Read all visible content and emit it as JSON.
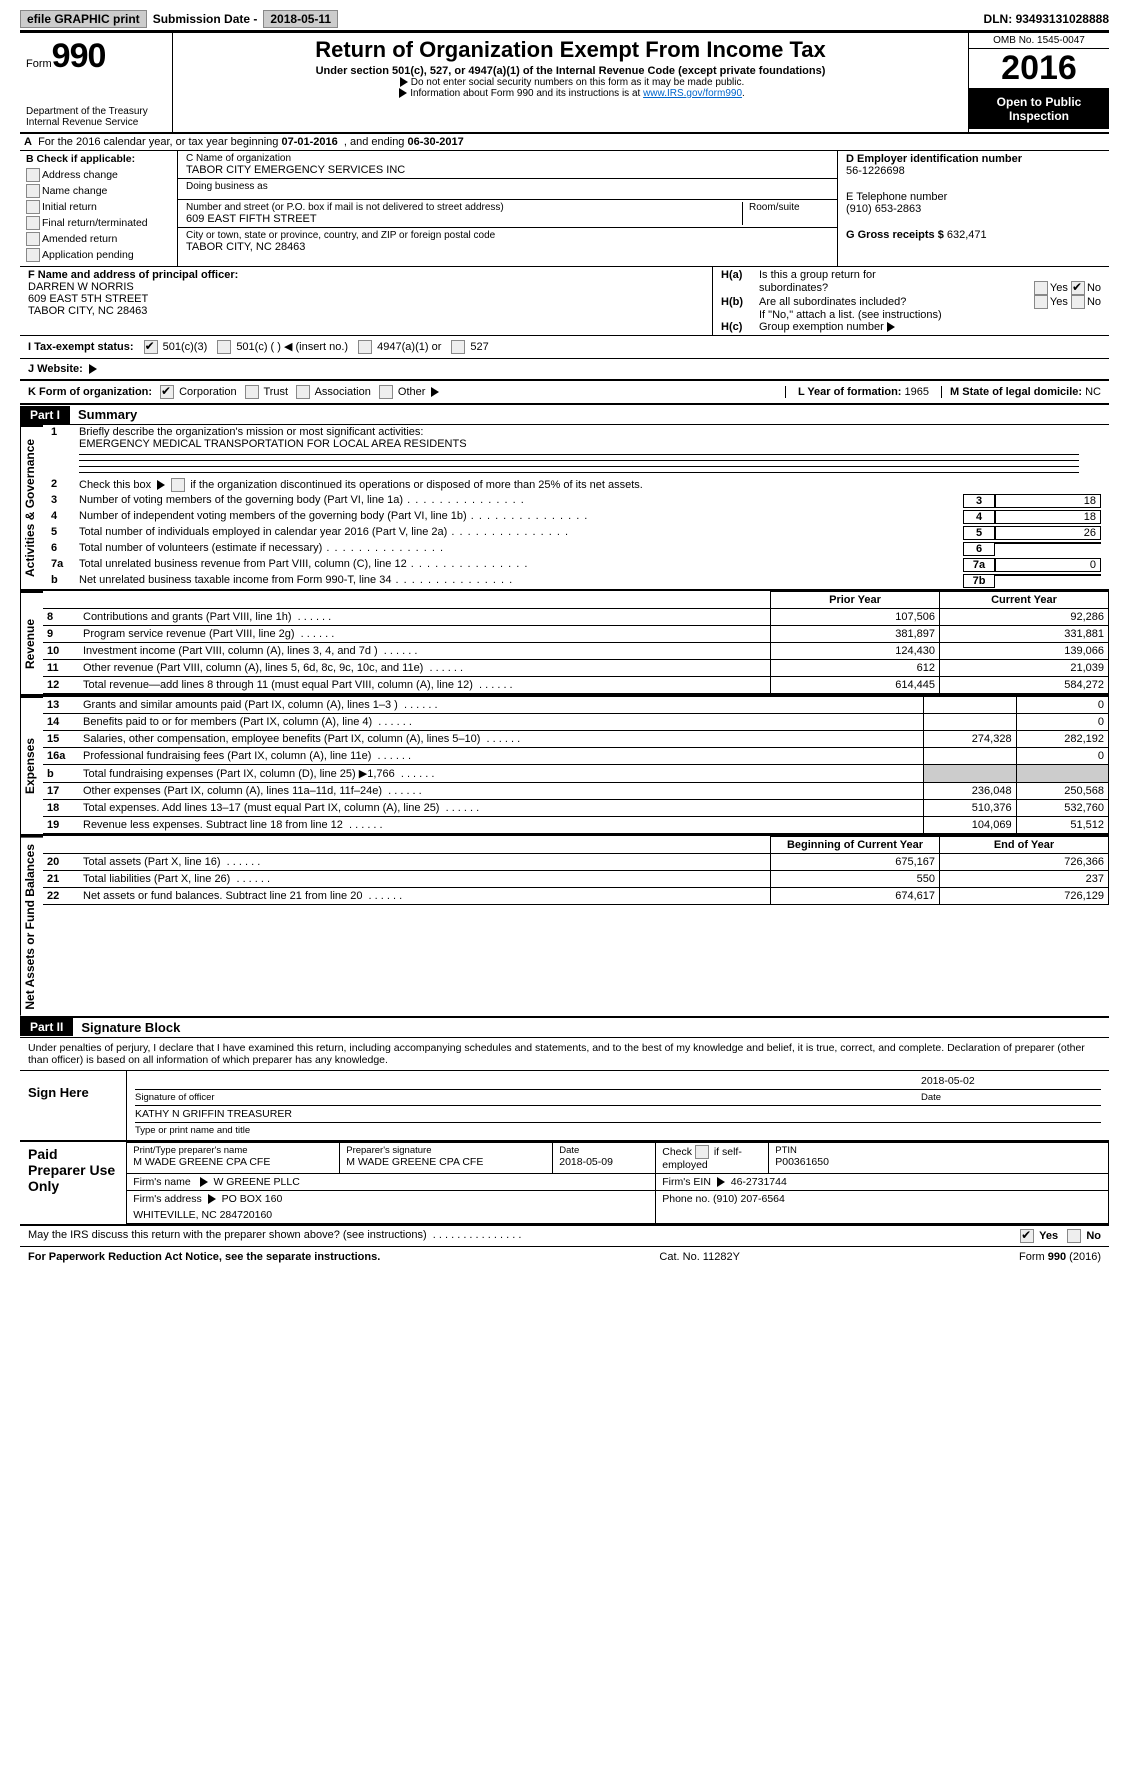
{
  "top": {
    "efile": "efile GRAPHIC print",
    "sub_label": "Submission Date -",
    "sub_date": "2018-05-11",
    "dln_label": "DLN:",
    "dln": "93493131028888"
  },
  "hdr": {
    "form_small": "Form",
    "form_big": "990",
    "dept1": "Department of the Treasury",
    "dept2": "Internal Revenue Service",
    "title": "Return of Organization Exempt From Income Tax",
    "subtitle": "Under section 501(c), 527, or 4947(a)(1) of the Internal Revenue Code (except private foundations)",
    "note1": "Do not enter social security numbers on this form as it may be made public.",
    "note2_pre": "Information about Form 990 and its instructions is at ",
    "note2_link": "www.IRS.gov/form990",
    "omb": "OMB No. 1545-0047",
    "year": "2016",
    "open1": "Open to Public",
    "open2": "Inspection"
  },
  "A": {
    "label_a": "A",
    "text1": "For the 2016 calendar year, or tax year beginning",
    "begin": "07-01-2016",
    "text2": ", and ending",
    "end": "06-30-2017"
  },
  "B": {
    "label": "B Check if applicable:",
    "opts": [
      "Address change",
      "Name change",
      "Initial return",
      "Final return/terminated",
      "Amended return",
      "Application pending"
    ]
  },
  "C": {
    "name_label": "C Name of organization",
    "name": "TABOR CITY EMERGENCY SERVICES INC",
    "dba_label": "Doing business as",
    "dba": "",
    "street_label": "Number and street (or P.O. box if mail is not delivered to street address)",
    "room_label": "Room/suite",
    "street": "609 EAST FIFTH STREET",
    "city_label": "City or town, state or province, country, and ZIP or foreign postal code",
    "city": "TABOR CITY, NC  28463"
  },
  "D": {
    "label": "D Employer identification number",
    "val": "56-1226698"
  },
  "E": {
    "label": "E Telephone number",
    "val": "(910) 653-2863"
  },
  "G": {
    "label": "G Gross receipts $",
    "val": "632,471"
  },
  "F": {
    "label": "F  Name and address of principal officer:",
    "l1": "DARREN W NORRIS",
    "l2": "609 EAST 5TH STREET",
    "l3": "TABOR CITY, NC  28463"
  },
  "H": {
    "a_label": "H(a)",
    "a_txt": "Is this a group return for",
    "a_txt2": "subordinates?",
    "a_yes": "Yes",
    "a_no": "No",
    "b_label": "H(b)",
    "b_txt": "Are all subordinates included?",
    "b_yes": "Yes",
    "b_no": "No",
    "b_note": "If \"No,\" attach a list. (see instructions)",
    "c_label": "H(c)",
    "c_txt": "Group exemption number"
  },
  "I": {
    "label": "I  Tax-exempt status:",
    "o1": "501(c)(3)",
    "o2": "501(c) (  )",
    "o2b": "(insert no.)",
    "o3": "4947(a)(1) or",
    "o4": "527"
  },
  "J": {
    "label": "J  Website:"
  },
  "K": {
    "label": "K Form of organization:",
    "o1": "Corporation",
    "o2": "Trust",
    "o3": "Association",
    "o4": "Other",
    "L": "L Year of formation:",
    "Lval": "1965",
    "M": "M State of legal domicile:",
    "Mval": "NC"
  },
  "part1": {
    "tag": "Part I",
    "title": "Summary"
  },
  "summary": {
    "q1": "Briefly describe the organization's mission or most significant activities:",
    "mission": "EMERGENCY MEDICAL TRANSPORTATION FOR LOCAL AREA RESIDENTS",
    "q2": "Check this box",
    "q2b": "if the organization discontinued its operations or disposed of more than 25% of its net assets.",
    "lines": [
      {
        "n": "3",
        "t": "Number of voting members of the governing body (Part VI, line 1a)",
        "v": "18"
      },
      {
        "n": "4",
        "t": "Number of independent voting members of the governing body (Part VI, line 1b)",
        "v": "18"
      },
      {
        "n": "5",
        "t": "Total number of individuals employed in calendar year 2016 (Part V, line 2a)",
        "v": "26"
      },
      {
        "n": "6",
        "t": "Total number of volunteers (estimate if necessary)",
        "v": ""
      },
      {
        "n": "7a",
        "t": "Total unrelated business revenue from Part VIII, column (C), line 12",
        "v": "0"
      },
      {
        "n": "b",
        "t": "Net unrelated business taxable income from Form 990-T, line 34",
        "v": "",
        "id": "7b"
      }
    ]
  },
  "rev": {
    "h1": "Prior Year",
    "h2": "Current Year",
    "rows": [
      {
        "n": "8",
        "t": "Contributions and grants (Part VIII, line 1h)",
        "p": "107,506",
        "c": "92,286"
      },
      {
        "n": "9",
        "t": "Program service revenue (Part VIII, line 2g)",
        "p": "381,897",
        "c": "331,881"
      },
      {
        "n": "10",
        "t": "Investment income (Part VIII, column (A), lines 3, 4, and 7d )",
        "p": "124,430",
        "c": "139,066"
      },
      {
        "n": "11",
        "t": "Other revenue (Part VIII, column (A), lines 5, 6d, 8c, 9c, 10c, and 11e)",
        "p": "612",
        "c": "21,039"
      },
      {
        "n": "12",
        "t": "Total revenue—add lines 8 through 11 (must equal Part VIII, column (A), line 12)",
        "p": "614,445",
        "c": "584,272"
      }
    ]
  },
  "exp": {
    "rows": [
      {
        "n": "13",
        "t": "Grants and similar amounts paid (Part IX, column (A), lines 1–3 )",
        "p": "",
        "c": "0"
      },
      {
        "n": "14",
        "t": "Benefits paid to or for members (Part IX, column (A), line 4)",
        "p": "",
        "c": "0"
      },
      {
        "n": "15",
        "t": "Salaries, other compensation, employee benefits (Part IX, column (A), lines 5–10)",
        "p": "274,328",
        "c": "282,192"
      },
      {
        "n": "16a",
        "t": "Professional fundraising fees (Part IX, column (A), line 11e)",
        "p": "",
        "c": "0"
      },
      {
        "n": "b",
        "t": "Total fundraising expenses (Part IX, column (D), line 25) ▶1,766",
        "p": "shade",
        "c": "shade"
      },
      {
        "n": "17",
        "t": "Other expenses (Part IX, column (A), lines 11a–11d, 11f–24e)",
        "p": "236,048",
        "c": "250,568"
      },
      {
        "n": "18",
        "t": "Total expenses. Add lines 13–17 (must equal Part IX, column (A), line 25)",
        "p": "510,376",
        "c": "532,760"
      },
      {
        "n": "19",
        "t": "Revenue less expenses. Subtract line 18 from line 12",
        "p": "104,069",
        "c": "51,512"
      }
    ]
  },
  "na": {
    "h1": "Beginning of Current Year",
    "h2": "End of Year",
    "rows": [
      {
        "n": "20",
        "t": "Total assets (Part X, line 16)",
        "p": "675,167",
        "c": "726,366"
      },
      {
        "n": "21",
        "t": "Total liabilities (Part X, line 26)",
        "p": "550",
        "c": "237"
      },
      {
        "n": "22",
        "t": "Net assets or fund balances. Subtract line 21 from line 20",
        "p": "674,617",
        "c": "726,129"
      }
    ]
  },
  "tabs": {
    "ag": "Activities & Governance",
    "rev": "Revenue",
    "exp": "Expenses",
    "na": "Net Assets or Fund Balances"
  },
  "part2": {
    "tag": "Part II",
    "title": "Signature Block",
    "decl": "Under penalties of perjury, I declare that I have examined this return, including accompanying schedules and statements, and to the best of my knowledge and belief, it is true, correct, and complete. Declaration of preparer (other than officer) is based on all information of which preparer has any knowledge."
  },
  "sign": {
    "label": "Sign Here",
    "sig_date": "2018-05-02",
    "sig_cap": "Signature of officer",
    "date_cap": "Date",
    "name": "KATHY N GRIFFIN TREASURER",
    "name_cap": "Type or print name and title"
  },
  "paid": {
    "label": "Paid Preparer Use Only",
    "pn_cap": "Print/Type preparer's name",
    "pn": "M WADE GREENE CPA CFE",
    "ps_cap": "Preparer's signature",
    "ps": "M WADE GREENE CPA CFE",
    "pd_cap": "Date",
    "pd": "2018-05-09",
    "se_cap": "Check",
    "se_cap2": "if self-employed",
    "ptin_cap": "PTIN",
    "ptin": "P00361650",
    "fn_cap": "Firm's name",
    "fn": "W GREENE PLLC",
    "fe_cap": "Firm's EIN",
    "fe": "46-2731744",
    "fa_cap": "Firm's address",
    "fa1": "PO BOX 160",
    "fa2": "WHITEVILLE, NC  284720160",
    "ph_cap": "Phone no.",
    "ph": "(910) 207-6564"
  },
  "discuss": {
    "q": "May the IRS discuss this return with the preparer shown above? (see instructions)",
    "yes": "Yes",
    "no": "No"
  },
  "footer": {
    "l": "For Paperwork Reduction Act Notice, see the separate instructions.",
    "c": "Cat. No. 11282Y",
    "r": "Form 990 (2016)"
  }
}
